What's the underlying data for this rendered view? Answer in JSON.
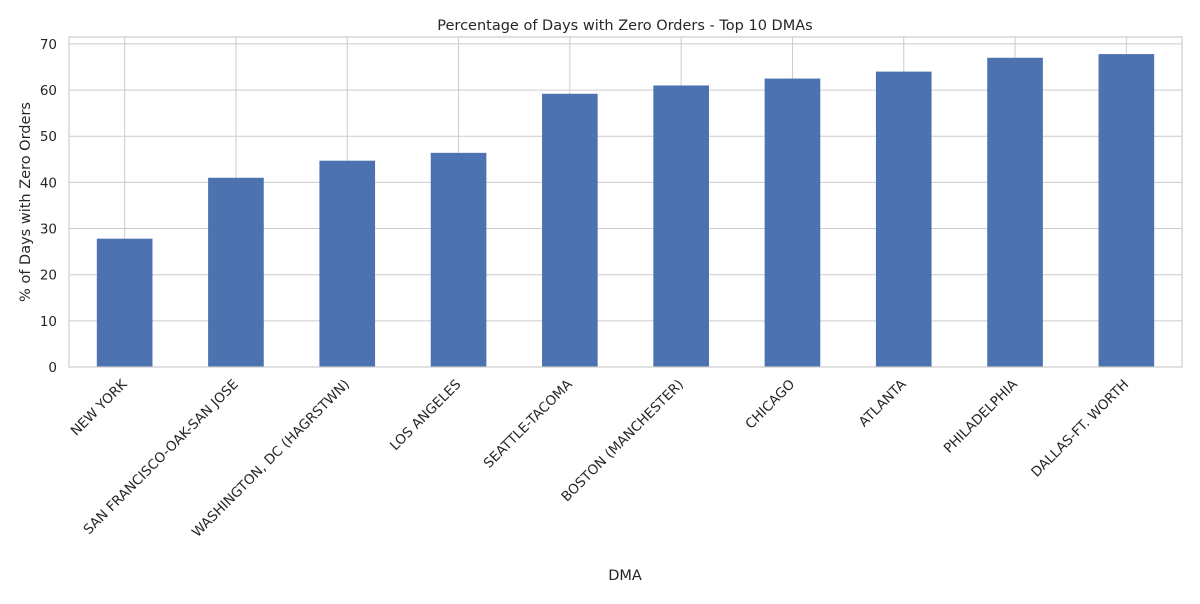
{
  "chart_data": {
    "type": "bar",
    "title": "Percentage of Days with Zero Orders - Top 10 DMAs",
    "xlabel": "DMA",
    "ylabel": "% of Days with Zero Orders",
    "categories": [
      "NEW YORK",
      "SAN FRANCISCO-OAK-SAN JOSE",
      "WASHINGTON, DC (HAGRSTWN)",
      "LOS ANGELES",
      "SEATTLE-TACOMA",
      "BOSTON (MANCHESTER)",
      "CHICAGO",
      "ATLANTA",
      "PHILADELPHIA",
      "DALLAS-FT. WORTH"
    ],
    "values": [
      27.8,
      41.0,
      44.7,
      46.4,
      59.2,
      61.0,
      62.5,
      64.0,
      67.0,
      67.8
    ],
    "ylim": [
      0,
      71.5
    ],
    "yticks": [
      0,
      10,
      20,
      30,
      40,
      50,
      60,
      70
    ],
    "grid": true,
    "legend": "none",
    "bar_color": "#4c72b0",
    "grid_color": "#cccccc"
  }
}
